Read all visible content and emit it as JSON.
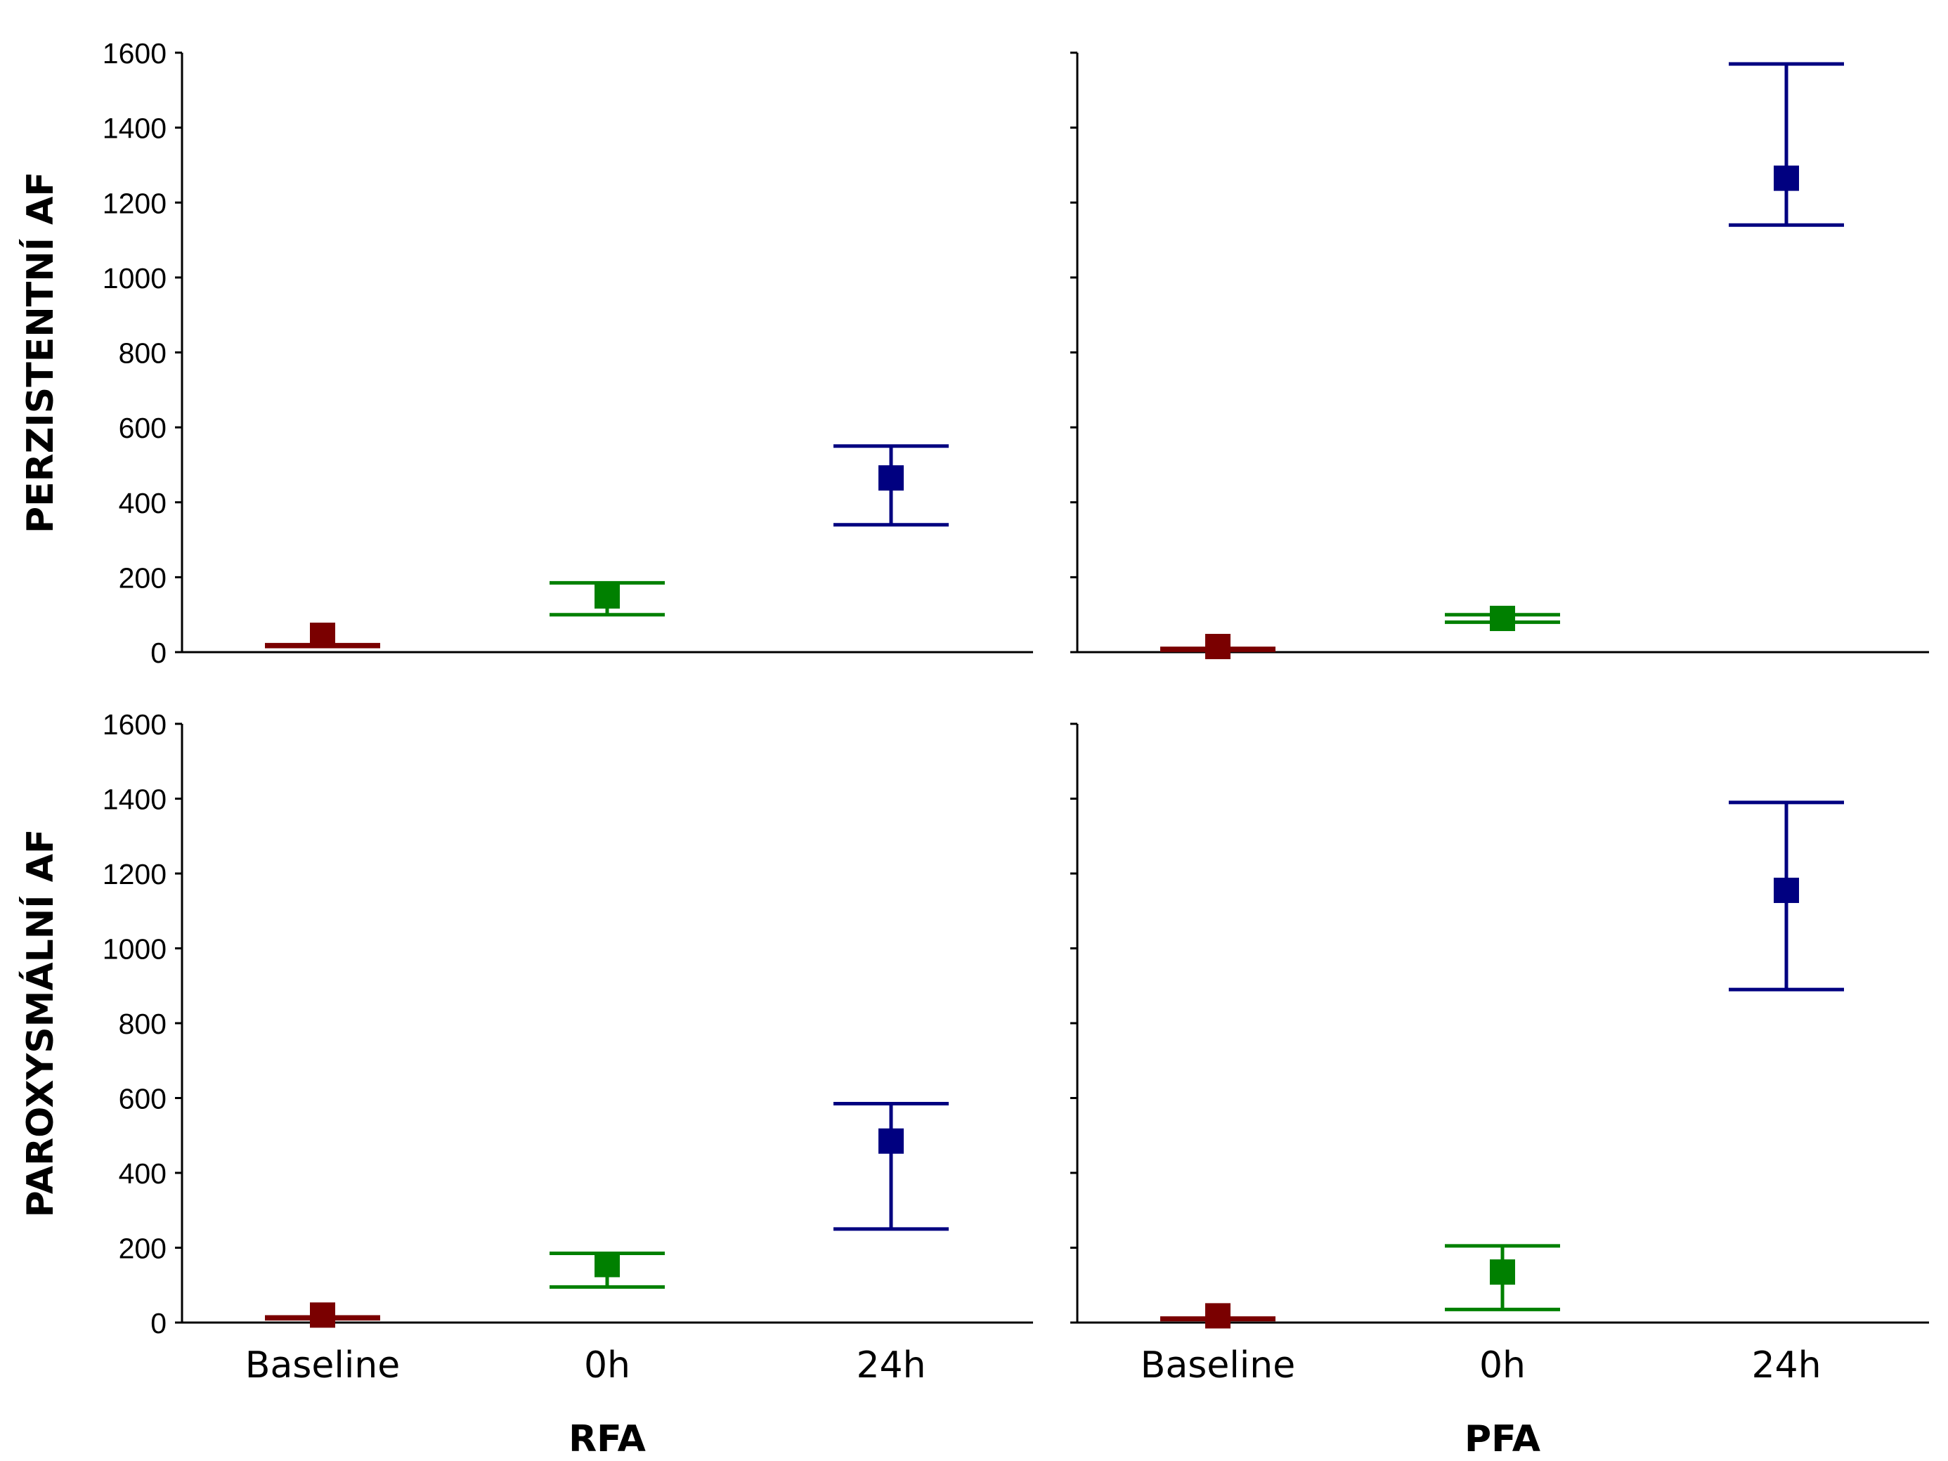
{
  "colors": {
    "baseline": "#7a0000",
    "0h": "#008000",
    "24h": "#000080",
    "axis": "#000000"
  },
  "row_labels": [
    "PERZISTENTNÍ AF",
    "PAROXYSMÁLNÍ AF"
  ],
  "column_labels": [
    "RFA",
    "PFA"
  ],
  "chart_data": [
    {
      "type": "scatter",
      "row": "PERZISTENTNÍ AF",
      "column": "RFA",
      "categories": [
        "Baseline",
        "0h",
        "24h"
      ],
      "points": [
        {
          "category": "Baseline",
          "value": 45,
          "low": 15,
          "high": 20
        },
        {
          "category": "0h",
          "value": 150,
          "low": 100,
          "high": 185
        },
        {
          "category": "24h",
          "value": 465,
          "low": 340,
          "high": 550
        }
      ],
      "ylim": [
        0,
        1600
      ],
      "yticks": [
        0,
        200,
        400,
        600,
        800,
        1000,
        1200,
        1400,
        1600
      ],
      "xlabel": "",
      "ylabel": "PERZISTENTNÍ AF"
    },
    {
      "type": "scatter",
      "row": "PERZISTENTNÍ AF",
      "column": "PFA",
      "categories": [
        "Baseline",
        "0h",
        "24h"
      ],
      "points": [
        {
          "category": "Baseline",
          "value": 15,
          "low": 5,
          "high": 10
        },
        {
          "category": "0h",
          "value": 90,
          "low": 80,
          "high": 100
        },
        {
          "category": "24h",
          "value": 1265,
          "low": 1140,
          "high": 1570
        }
      ],
      "ylim": [
        0,
        1600
      ],
      "yticks": [
        0,
        200,
        400,
        600,
        800,
        1000,
        1200,
        1400,
        1600
      ],
      "xlabel": "",
      "ylabel": ""
    },
    {
      "type": "scatter",
      "row": "PAROXYSMÁLNÍ AF",
      "column": "RFA",
      "categories": [
        "Baseline",
        "0h",
        "24h"
      ],
      "points": [
        {
          "category": "Baseline",
          "value": 20,
          "low": 10,
          "high": 15
        },
        {
          "category": "0h",
          "value": 155,
          "low": 95,
          "high": 185
        },
        {
          "category": "24h",
          "value": 485,
          "low": 250,
          "high": 585
        }
      ],
      "ylim": [
        0,
        1600
      ],
      "yticks": [
        0,
        200,
        400,
        600,
        800,
        1000,
        1200,
        1400,
        1600
      ],
      "xlabel": "RFA",
      "ylabel": "PAROXYSMÁLNÍ AF"
    },
    {
      "type": "scatter",
      "row": "PAROXYSMÁLNÍ AF",
      "column": "PFA",
      "categories": [
        "Baseline",
        "0h",
        "24h"
      ],
      "points": [
        {
          "category": "Baseline",
          "value": 18,
          "low": 8,
          "high": 12
        },
        {
          "category": "0h",
          "value": 135,
          "low": 35,
          "high": 205
        },
        {
          "category": "24h",
          "value": 1155,
          "low": 890,
          "high": 1390
        }
      ],
      "ylim": [
        0,
        1600
      ],
      "yticks": [
        0,
        200,
        400,
        600,
        800,
        1000,
        1200,
        1400,
        1600
      ],
      "xlabel": "PFA",
      "ylabel": ""
    }
  ]
}
